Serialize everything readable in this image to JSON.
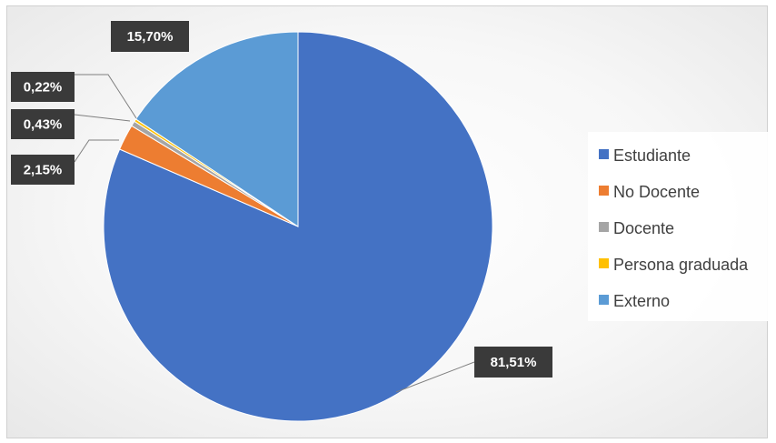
{
  "chart_data": {
    "type": "pie",
    "title": "",
    "categories": [
      "Estudiante",
      "No Docente",
      "Docente",
      "Persona graduada",
      "Externo"
    ],
    "values": [
      81.51,
      2.15,
      0.43,
      0.22,
      15.7
    ],
    "data_labels": [
      "81,51%",
      "2,15%",
      "0,43%",
      "0,22%",
      "15,70%"
    ],
    "colors": [
      "#4472C4",
      "#ED7D31",
      "#A5A5A5",
      "#FFC000",
      "#5B9BD5"
    ],
    "start_angle_deg": 0,
    "direction": "clockwise",
    "legend_position": "right",
    "label_style": "white bold text on dark callout boxes with leader lines"
  }
}
